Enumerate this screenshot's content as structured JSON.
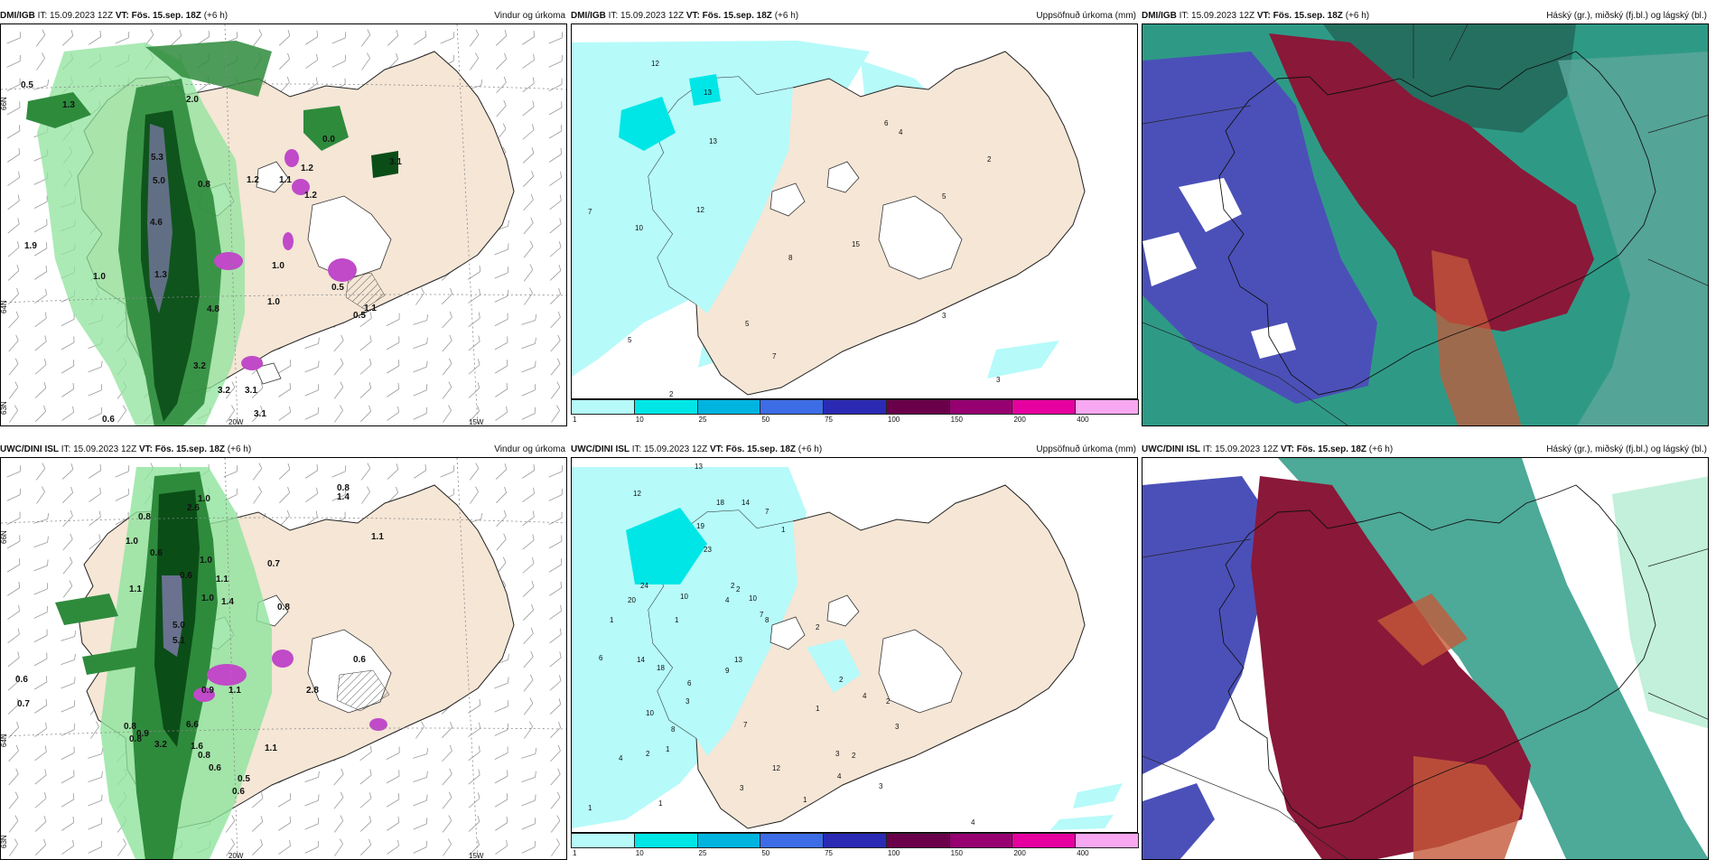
{
  "rows": [
    {
      "model": "DMI/IGB",
      "issued": "IT: 15.09.2023 12Z",
      "vt_label": "VT: Fös. 15.sep. 18Z",
      "lead": "(+6 h)",
      "wind_labels": [
        "0.5",
        "1.3",
        "2.0",
        "5.3",
        "5.0",
        "4.6",
        "0.8",
        "1.2",
        "1.1",
        "1.2",
        "1.2",
        "0.0",
        "1.9",
        "1.0",
        "1.3",
        "1.0",
        "4.8",
        "1.0",
        "0.5",
        "0.5",
        "1.1",
        "3.2",
        "3.1",
        "0.6",
        "3.1",
        "3.2",
        "3.1"
      ],
      "precip_labels": [
        "12",
        "13",
        "6",
        "4",
        "2",
        "13",
        "12",
        "7",
        "10",
        "5",
        "8",
        "15",
        "5",
        "3",
        "5",
        "7",
        "3",
        "2"
      ]
    },
    {
      "model": "UWC/DINI ISL",
      "issued": "IT: 15.09.2023 12Z",
      "vt_label": "VT: Fös. 15.sep. 18Z",
      "lead": "(+6 h)",
      "wind_labels": [
        "0.8",
        "1.0",
        "1.4",
        "2.6",
        "0.8",
        "1.0",
        "0.6",
        "1.1",
        "1.0",
        "0.6",
        "1.1",
        "0.7",
        "1.1",
        "1.0",
        "1.4",
        "0.8",
        "5.0",
        "5.1",
        "0.6",
        "0.6",
        "0.7",
        "0.9",
        "1.1",
        "2.8",
        "0.8",
        "0.9",
        "0.8",
        "6.6",
        "3.2",
        "1.6",
        "0.8",
        "0.6",
        "0.5",
        "0.6",
        "1.1"
      ],
      "precip_labels": [
        "13",
        "12",
        "18",
        "14",
        "7",
        "1",
        "19",
        "23",
        "24",
        "20",
        "4",
        "1",
        "10",
        "2",
        "2",
        "10",
        "7",
        "1",
        "8",
        "2",
        "6",
        "14",
        "18",
        "13",
        "9",
        "2",
        "6",
        "3",
        "10",
        "1",
        "4",
        "2",
        "3",
        "8",
        "7",
        "4",
        "2",
        "1",
        "3",
        "4",
        "1",
        "1",
        "12",
        "3",
        "2",
        "1",
        "3",
        "2",
        "4"
      ]
    }
  ],
  "field_titles": {
    "wind": "Vindur og úrkoma",
    "precip": "Uppsöfnuð úrkoma (mm)",
    "cloud": "Háský (gr.), miðský (fj.bl.) og lágský (bl.)"
  },
  "axes": {
    "lat_labels": [
      "66N",
      "64N",
      "63N"
    ],
    "lon_labels": [
      "20W",
      "15W"
    ]
  },
  "legend": {
    "ticks": [
      "1",
      "10",
      "25",
      "50",
      "75",
      "100",
      "150",
      "200",
      "400"
    ],
    "colors": [
      "#b6fafa",
      "#00e6e6",
      "#00b4e0",
      "#3c6de6",
      "#2a2ab4",
      "#6a004a",
      "#960070",
      "#e600a0",
      "#f8a8f0"
    ]
  },
  "colors": {
    "land": "#f5e6d6",
    "precip_light": "#8fe39c",
    "precip_mid": "#2e8b3c",
    "precip_heavy": "#0b4d17",
    "precip_extreme": "#c04ac8",
    "cloud_high": "#4b50b8",
    "cloud_mid": "#8a1838",
    "cloud_low": "#2e9a86"
  }
}
